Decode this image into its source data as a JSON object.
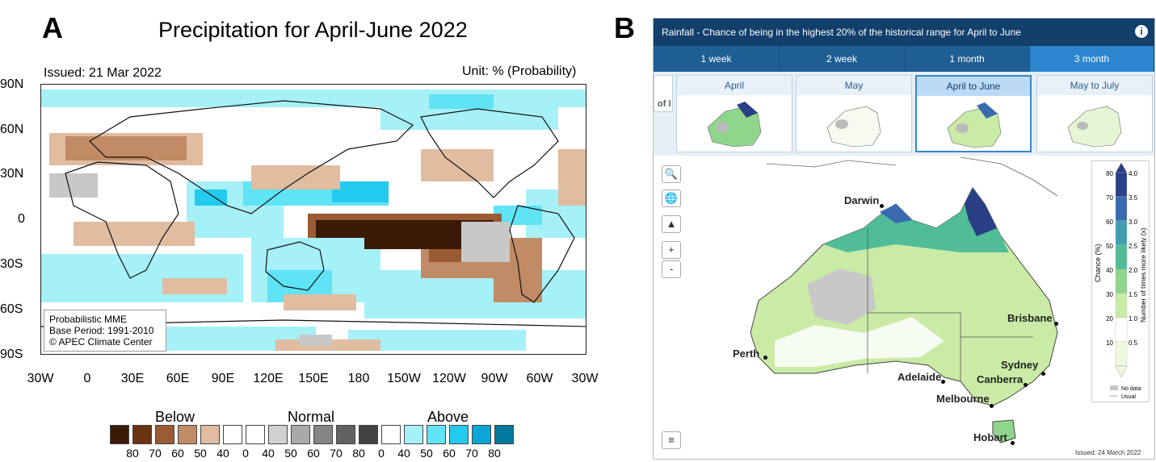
{
  "panel_a": {
    "letter": "A",
    "title": "Precipitation for April-June 2022",
    "issued": "Issued: 21 Mar 2022",
    "unit": "Unit: % (Probability)",
    "lat_labels": [
      "90N",
      "60N",
      "30N",
      "0",
      "30S",
      "60S",
      "90S"
    ],
    "lon_labels": [
      "30W",
      "0",
      "30E",
      "60E",
      "90E",
      "120E",
      "150E",
      "180",
      "150W",
      "120W",
      "90W",
      "60W",
      "30W"
    ],
    "note_lines": [
      "Probabilistic MME",
      "Base Period: 1991-2010",
      "© APEC Climate Center"
    ],
    "legend": {
      "groups": [
        "Below",
        "Normal",
        "Above"
      ],
      "ticks": [
        "80",
        "70",
        "60",
        "50",
        "40",
        "0",
        "40",
        "50",
        "60",
        "70",
        "80",
        "0",
        "40",
        "50",
        "60",
        "70",
        "80"
      ],
      "colors": [
        "#3b1a08",
        "#6b3411",
        "#9a5b34",
        "#c18b65",
        "#e0bca1",
        "#ffffff",
        "#ffffff",
        "#d1d1d1",
        "#a9a9a9",
        "#858585",
        "#626262",
        "#424242",
        "#ffffff",
        "#a6f0f8",
        "#5fe3f5",
        "#22cbee",
        "#0aa7d6",
        "#047a9e"
      ]
    },
    "land_color": "#111111"
  },
  "panel_b": {
    "letter": "B",
    "header": "Rainfall - Chance of being in the highest 20% of the historical range for April to June",
    "info_icon": "info-icon",
    "tabs": [
      {
        "label": "1 week",
        "active": false
      },
      {
        "label": "2 week",
        "active": false
      },
      {
        "label": "1 month",
        "active": false
      },
      {
        "label": "3 month",
        "active": true
      }
    ],
    "period_stub": "of l",
    "periods": [
      {
        "label": "April",
        "selected": false
      },
      {
        "label": "May",
        "selected": false
      },
      {
        "label": "April to June",
        "selected": true
      },
      {
        "label": "May to July",
        "selected": false
      }
    ],
    "controls": [
      "search-icon",
      "globe-icon",
      "australia-icon",
      "+",
      "-",
      "layers-icon"
    ],
    "cities": [
      "Darwin",
      "Brisbane",
      "Perth",
      "Sydney",
      "Adelaide",
      "Canberra",
      "Melbourne",
      "Hobart"
    ],
    "legend": {
      "chance_title": "Chance (%)",
      "likely_title": "Number of times more likely (x)",
      "chance_ticks": [
        "80",
        "70",
        "60",
        "50",
        "40",
        "30",
        "20",
        "10"
      ],
      "times_ticks": [
        "4.0",
        "3.5",
        "3.0",
        "2.5",
        "2.0",
        "1.5",
        "1.0",
        "0.5"
      ],
      "colors": [
        "#2b3f86",
        "#3a6ab0",
        "#3f9fb0",
        "#50bd98",
        "#8fd68c",
        "#c9eba5",
        "#ffffff",
        "#f0f7df"
      ],
      "no_data": "No data",
      "usual": "Usual"
    },
    "issued": "Issued: 24 March 2022"
  }
}
